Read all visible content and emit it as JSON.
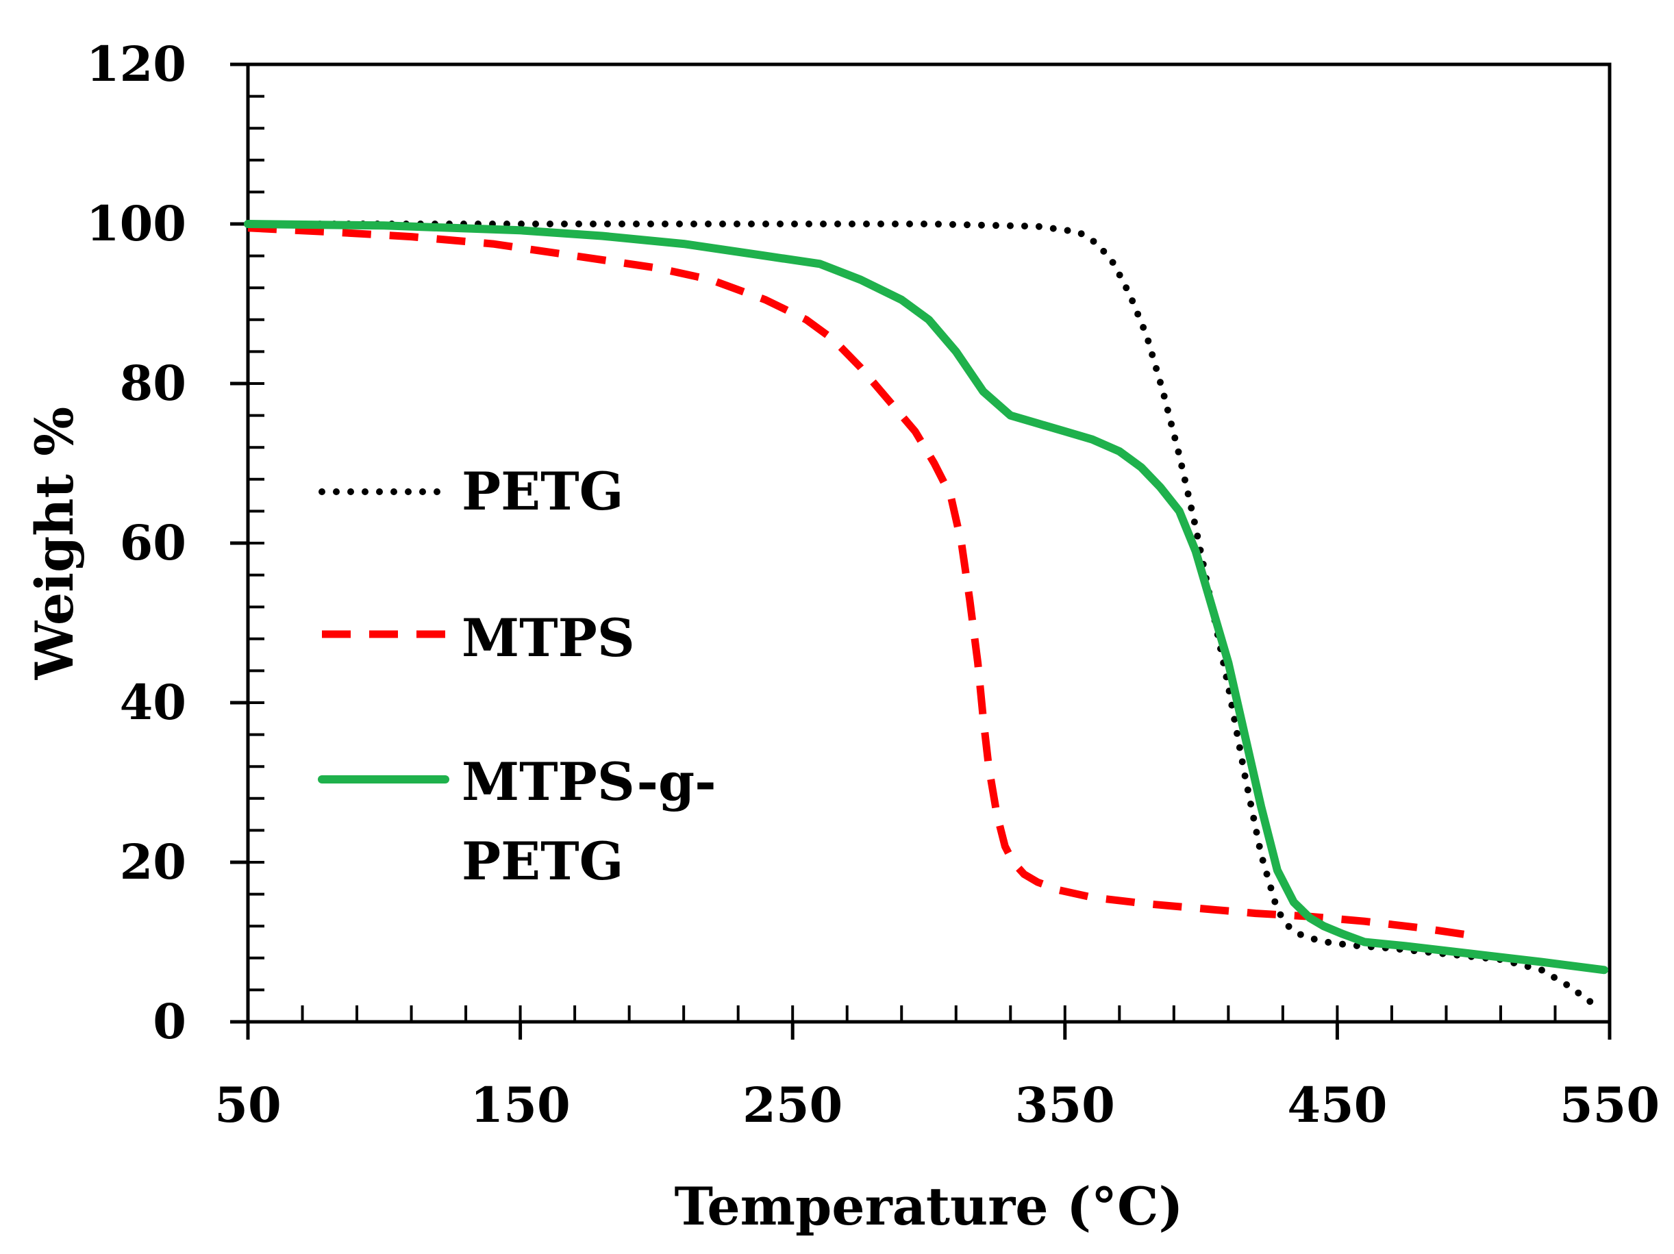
{
  "chart_data": {
    "type": "line",
    "title": "",
    "xlabel": "Temperature (°C)",
    "ylabel": "Weight %",
    "xlim": [
      50,
      550
    ],
    "ylim": [
      0,
      120
    ],
    "xticks": [
      50,
      150,
      250,
      350,
      450,
      550
    ],
    "yticks": [
      0,
      20,
      40,
      60,
      80,
      100,
      120
    ],
    "xtick_labels": [
      "50",
      "150",
      "250",
      "350",
      "450",
      "550"
    ],
    "ytick_labels": [
      "0",
      "20",
      "40",
      "60",
      "80",
      "100",
      "120"
    ],
    "x_minor_step": 20,
    "y_minor_step": 4,
    "grid": false,
    "legend_position": "left-center",
    "series": [
      {
        "name": "PETG",
        "legend_lines": [
          "PETG"
        ],
        "color": "#000000",
        "style": "dotted",
        "x": [
          50,
          100,
          150,
          200,
          250,
          300,
          340,
          355,
          362,
          368,
          374,
          380,
          386,
          392,
          398,
          404,
          410,
          416,
          422,
          428,
          432,
          436,
          440,
          446,
          455,
          470,
          490,
          510,
          525,
          535,
          545
        ],
        "y": [
          100,
          100,
          100,
          100,
          100,
          100,
          99.7,
          99.0,
          97.5,
          95,
          91,
          86,
          79,
          71,
          62,
          52,
          42,
          31,
          21,
          14,
          12,
          11,
          10.5,
          10,
          9.6,
          9.2,
          8.5,
          7.8,
          6.5,
          4.5,
          2
        ]
      },
      {
        "name": "MTPS",
        "legend_lines": [
          "MTPS"
        ],
        "color": "#ff0000",
        "style": "dashed",
        "x": [
          50,
          80,
          110,
          140,
          170,
          200,
          220,
          240,
          255,
          265,
          275,
          285,
          295,
          302,
          308,
          312,
          315,
          318,
          320,
          322,
          325,
          328,
          331,
          335,
          340,
          348,
          360,
          380,
          400,
          420,
          440,
          460,
          480,
          500
        ],
        "y": [
          99.5,
          99,
          98.4,
          97.5,
          96,
          94.5,
          93,
          90.5,
          88,
          85.5,
          82,
          78,
          74,
          70,
          66,
          60,
          53,
          45,
          38,
          32,
          26,
          22,
          20,
          18.5,
          17.5,
          16.5,
          15.6,
          14.8,
          14.2,
          13.6,
          13.2,
          12.6,
          11.8,
          10.8
        ]
      },
      {
        "name": "MTPS-g-PETG",
        "legend_lines": [
          "MTPS-g-",
          "PETG"
        ],
        "color": "#1fb14c",
        "style": "solid",
        "x": [
          50,
          100,
          150,
          180,
          210,
          240,
          260,
          275,
          290,
          300,
          310,
          320,
          330,
          340,
          350,
          360,
          370,
          378,
          385,
          392,
          398,
          404,
          410,
          416,
          422,
          428,
          434,
          440,
          445,
          452,
          460,
          475,
          500,
          525,
          548
        ],
        "y": [
          100,
          99.8,
          99.2,
          98.5,
          97.5,
          96,
          95,
          93,
          90.5,
          88,
          84,
          79,
          76,
          75,
          74,
          73,
          71.5,
          69.5,
          67,
          64,
          59,
          52,
          45,
          36,
          27,
          19,
          15,
          13,
          12,
          11,
          10,
          9.5,
          8.5,
          7.5,
          6.5
        ]
      }
    ]
  }
}
